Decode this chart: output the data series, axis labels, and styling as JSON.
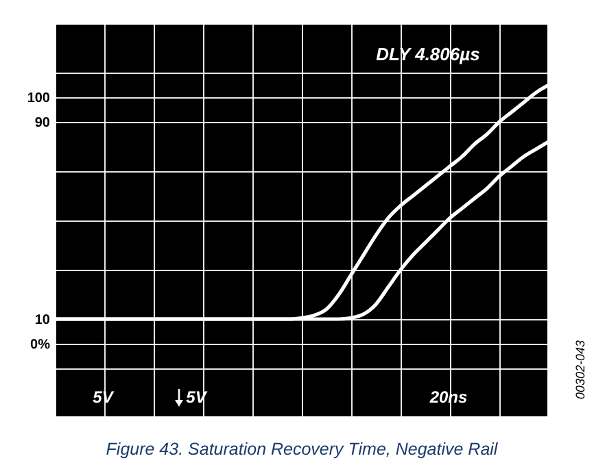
{
  "chart_data": {
    "type": "line",
    "title": "Figure 43. Saturation Recovery Time, Negative Rail",
    "categories": [
      null,
      null,
      null,
      null,
      null,
      null,
      null,
      null,
      null,
      null,
      null,
      null,
      null,
      null,
      null,
      null,
      null,
      null,
      null,
      null,
      null,
      null,
      null,
      null,
      null,
      null,
      null,
      null,
      null,
      null,
      null,
      null,
      null,
      null,
      null,
      null,
      null,
      null,
      null,
      null,
      null
    ],
    "series": [
      {
        "color": "#ffffff",
        "values": [
          10,
          10,
          10,
          10,
          10,
          10,
          10,
          10,
          10,
          10,
          10,
          10,
          10,
          10,
          10,
          10,
          10,
          10,
          10,
          10,
          10.5,
          11.5,
          14,
          20,
          28,
          36,
          44,
          51,
          56,
          60,
          64,
          68,
          72,
          76,
          81,
          85,
          90,
          94,
          98,
          102,
          105
        ]
      },
      {
        "color": "#ffffff",
        "values": [
          10,
          10,
          10,
          10,
          10,
          10,
          10,
          10,
          10,
          10,
          10,
          10,
          10,
          10,
          10,
          10,
          10,
          10,
          10,
          10,
          10,
          10,
          10,
          10,
          10.5,
          12,
          16,
          23,
          30,
          36,
          41,
          46,
          51,
          55,
          59,
          63,
          68,
          72,
          76,
          79,
          82
        ]
      }
    ],
    "ylim": [
      -30,
      130
    ],
    "yticks": [
      {
        "value": 130,
        "label": null
      },
      {
        "value": 110,
        "label": null
      },
      100,
      90,
      {
        "value": 70,
        "label": null
      },
      {
        "value": 50,
        "label": null
      },
      {
        "value": 30,
        "label": null
      },
      10,
      {
        "value": 0,
        "label": "0%"
      },
      {
        "value": -10,
        "label": null
      },
      {
        "value": -30,
        "label": null
      }
    ],
    "grid": true,
    "tick_labels": "y",
    "annotations": [
      "DLY 4.806µs",
      "5V",
      "5V",
      "20ns",
      "00302-043"
    ]
  }
}
